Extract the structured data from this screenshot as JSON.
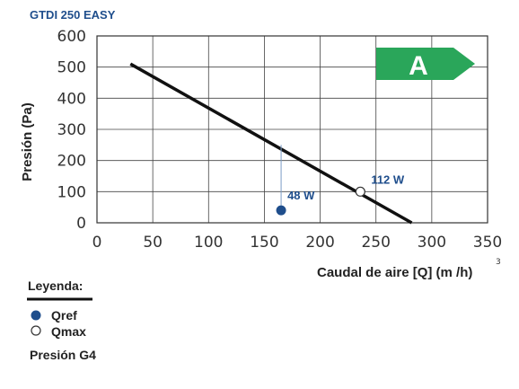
{
  "chart_data": {
    "type": "line",
    "title": "GTDI   250   EASY",
    "xlabel": "Caudal de aire [Q] (m /h)",
    "xlabel_superscript": "3",
    "ylabel": "Presión  (Pa)",
    "xlim": [
      0,
      350
    ],
    "ylim": [
      0,
      600
    ],
    "xticks": [
      0,
      50,
      100,
      150,
      200,
      250,
      300,
      350
    ],
    "yticks": [
      0,
      100,
      200,
      300,
      400,
      500,
      600
    ],
    "grid": true,
    "series": [
      {
        "name": "Presión G4",
        "x": [
          30,
          282
        ],
        "y": [
          510,
          0
        ],
        "color": "#111111"
      }
    ],
    "points": [
      {
        "name": "Qref",
        "label": "48 W",
        "x": 165,
        "y": 40,
        "fill": "#1f4e8c"
      },
      {
        "name": "Qmax",
        "label": "112 W",
        "x": 236,
        "y": 100,
        "fill": "#ffffff"
      }
    ],
    "energy_class": {
      "label": "A",
      "color": "#2aa65a"
    },
    "legend": {
      "title": "Leyenda:",
      "items": [
        "Qref",
        "Qmax"
      ],
      "line_label": "Presión G4"
    }
  }
}
